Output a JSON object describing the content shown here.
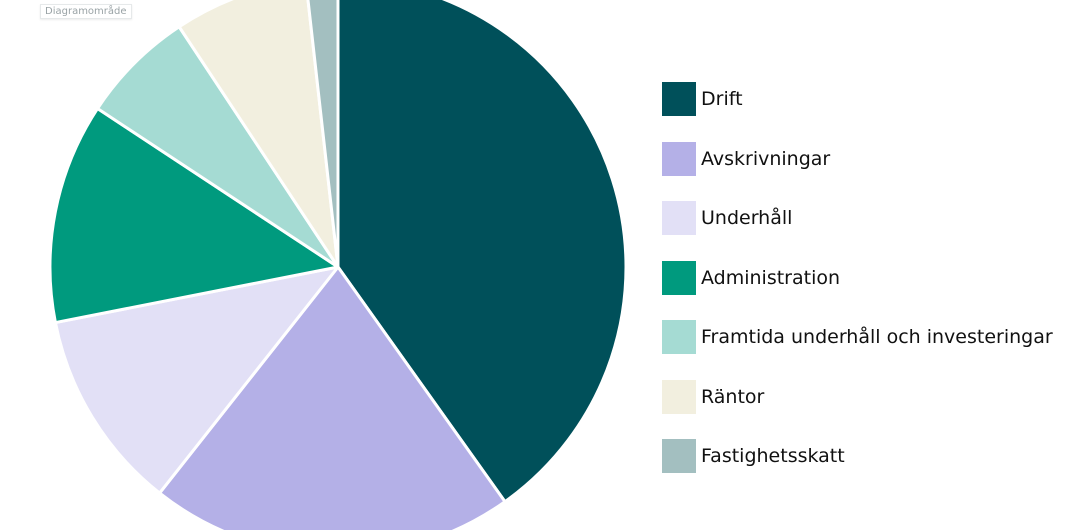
{
  "chart_area_tag": "Diagramområde",
  "chart_data": {
    "type": "pie",
    "title": "",
    "legend_position": "right",
    "slices": [
      {
        "label": "Drift",
        "value": 40.6,
        "color": "#00505a"
      },
      {
        "label": "Avskrivningar",
        "value": 20.7,
        "color": "#b4b0e7"
      },
      {
        "label": "Underhåll",
        "value": 11.4,
        "color": "#e2e0f6"
      },
      {
        "label": "Administration",
        "value": 12.5,
        "color": "#009a7e"
      },
      {
        "label": "Framtida underhåll och investeringar",
        "value": 6.5,
        "color": "#a5dbd3"
      },
      {
        "label": "Räntor",
        "value": 7.6,
        "color": "#f2efdf"
      },
      {
        "label": "Fastighetsskatt",
        "value": 1.8,
        "color": "#a3bfc0"
      }
    ]
  }
}
